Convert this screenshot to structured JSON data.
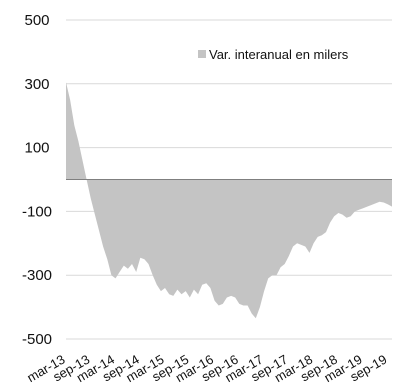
{
  "chart_data": {
    "type": "area",
    "title": "",
    "xlabel": "",
    "ylabel": "",
    "ylim": [
      -500,
      500
    ],
    "yticks": [
      500,
      300,
      100,
      -100,
      -300,
      -500
    ],
    "grid": true,
    "legend_position": "top-right",
    "colors": {
      "area": "#c4c4c4",
      "grid": "#d9d9d9",
      "axis": "#7f7f7f",
      "text": "#111111"
    },
    "x_tick_labels": [
      "mar-13",
      "sep-13",
      "mar-14",
      "sep-14",
      "mar-15",
      "sep-15",
      "mar-16",
      "sep-16",
      "mar-17",
      "sep-17",
      "mar-18",
      "sep-18",
      "mar-19",
      "sep-19"
    ],
    "x": [
      "mar-13",
      "apr-13",
      "may-13",
      "jun-13",
      "jul-13",
      "aug-13",
      "sep-13",
      "oct-13",
      "nov-13",
      "dec-13",
      "jan-14",
      "feb-14",
      "mar-14",
      "apr-14",
      "may-14",
      "jun-14",
      "jul-14",
      "aug-14",
      "sep-14",
      "oct-14",
      "nov-14",
      "dec-14",
      "jan-15",
      "feb-15",
      "mar-15",
      "apr-15",
      "may-15",
      "jun-15",
      "jul-15",
      "aug-15",
      "sep-15",
      "oct-15",
      "nov-15",
      "dec-15",
      "jan-16",
      "feb-16",
      "mar-16",
      "apr-16",
      "may-16",
      "jun-16",
      "jul-16",
      "aug-16",
      "sep-16",
      "oct-16",
      "nov-16",
      "dec-16",
      "jan-17",
      "feb-17",
      "mar-17",
      "apr-17",
      "may-17",
      "jun-17",
      "jul-17",
      "aug-17",
      "sep-17",
      "oct-17",
      "nov-17",
      "dec-17",
      "jan-18",
      "feb-18",
      "mar-18",
      "apr-18",
      "may-18",
      "jun-18",
      "jul-18",
      "aug-18",
      "sep-18",
      "oct-18",
      "nov-18",
      "dec-18",
      "jan-19",
      "feb-19",
      "mar-19",
      "apr-19",
      "may-19",
      "jun-19",
      "jul-19",
      "aug-19",
      "sep-19",
      "oct-19"
    ],
    "series": [
      {
        "name": "Var. interanual en milers",
        "values": [
          305,
          250,
          170,
          120,
          60,
          0,
          -60,
          -110,
          -160,
          -210,
          -250,
          -300,
          -310,
          -290,
          -270,
          -280,
          -265,
          -290,
          -245,
          -250,
          -265,
          -300,
          -330,
          -350,
          -340,
          -360,
          -365,
          -345,
          -360,
          -350,
          -370,
          -345,
          -360,
          -330,
          -325,
          -340,
          -380,
          -395,
          -390,
          -370,
          -365,
          -370,
          -390,
          -395,
          -395,
          -420,
          -435,
          -400,
          -350,
          -310,
          -300,
          -300,
          -275,
          -265,
          -240,
          -210,
          -200,
          -205,
          -210,
          -230,
          -200,
          -180,
          -175,
          -165,
          -135,
          -115,
          -105,
          -110,
          -120,
          -115,
          -100,
          -95,
          -90,
          -85,
          -80,
          -75,
          -70,
          -72,
          -78,
          -85
        ]
      }
    ],
    "legend": [
      "Var. interanual en milers"
    ]
  }
}
